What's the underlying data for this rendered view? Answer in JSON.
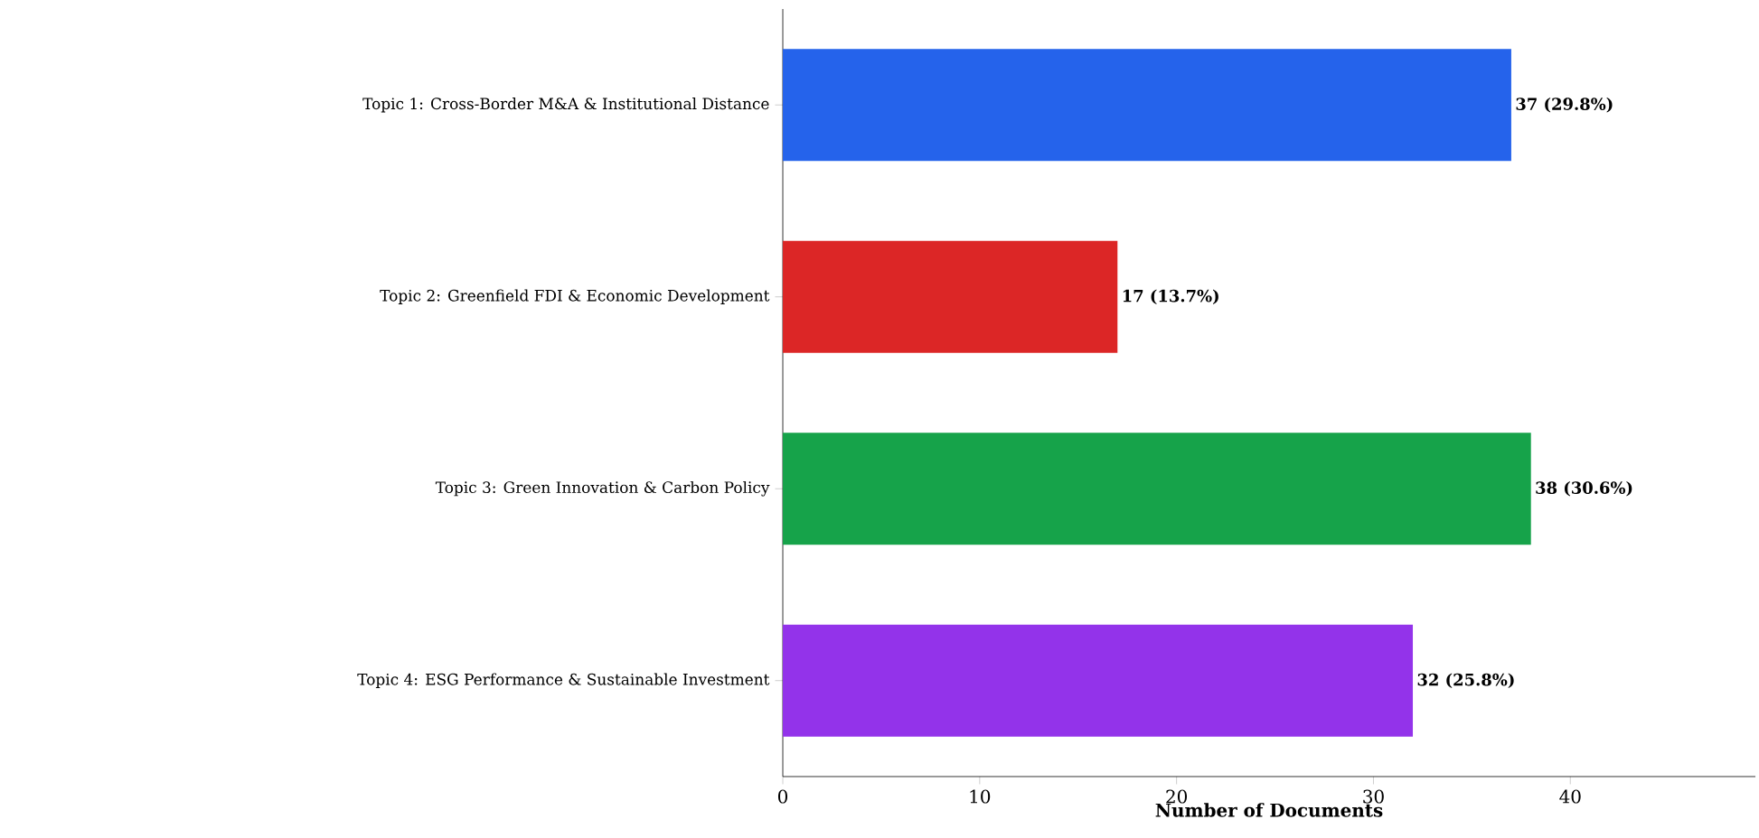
{
  "chart_data": {
    "type": "bar",
    "orientation": "horizontal",
    "xlabel": "Number of Documents",
    "categories": [
      "Topic 1: Cross-Border M&A & Institutional Distance",
      "Topic 2: Greenfield FDI & Economic Development",
      "Topic 3: Green Innovation & Carbon Policy",
      "Topic 4: ESG Performance & Sustainable Investment"
    ],
    "values": [
      37,
      17,
      38,
      32
    ],
    "colors": [
      "#2563eb",
      "#dc2626",
      "#16a34a",
      "#9333ea"
    ],
    "value_labels": [
      "37 (29.8%)",
      "17 (13.7%)",
      "38 (30.6%)",
      "32 (25.8%)"
    ],
    "xlim": [
      0,
      49.4
    ],
    "xticks": [
      0,
      10,
      20,
      30,
      40
    ]
  }
}
